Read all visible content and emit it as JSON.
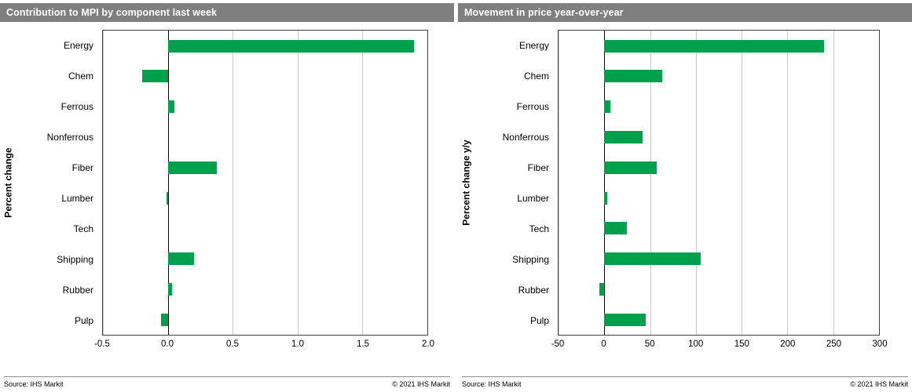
{
  "colors": {
    "bar": "#00a04c",
    "header_bg": "#7f7f7f",
    "grid": "#c9c9c9",
    "zero_line": "#000000"
  },
  "chart_data": [
    {
      "type": "bar",
      "orientation": "horizontal",
      "title": "Contribution to MPI by component last week",
      "ylabel": "Percent change",
      "categories": [
        "Energy",
        "Chem",
        "Ferrous",
        "Nonferrous",
        "Fiber",
        "Lumber",
        "Tech",
        "Shipping",
        "Rubber",
        "Pulp"
      ],
      "values": [
        1.9,
        -0.2,
        0.05,
        0,
        0.38,
        -0.01,
        0,
        0.2,
        0.03,
        -0.05
      ],
      "xlim": [
        -0.5,
        2.0
      ],
      "ticks": [
        {
          "value": -0.5,
          "label": "-0.5"
        },
        {
          "value": 0.0,
          "label": "0.0"
        },
        {
          "value": 0.5,
          "label": "0.5"
        },
        {
          "value": 1.0,
          "label": "1.0"
        },
        {
          "value": 1.5,
          "label": "1.5"
        },
        {
          "value": 2.0,
          "label": "2.0"
        }
      ],
      "grid": true,
      "legend": false,
      "source": "Source:  IHS Markit",
      "copyright": "© 2021   IHS Markit"
    },
    {
      "type": "bar",
      "orientation": "horizontal",
      "title": "Movement in price year-over-year",
      "ylabel": "Percent change y/y",
      "categories": [
        "Energy",
        "Chem",
        "Ferrous",
        "Nonferrous",
        "Fiber",
        "Lumber",
        "Tech",
        "Shipping",
        "Rubber",
        "Pulp"
      ],
      "values": [
        240,
        63,
        7,
        42,
        57,
        3,
        25,
        105,
        -5,
        45
      ],
      "xlim": [
        -50,
        300
      ],
      "ticks": [
        {
          "value": -50,
          "label": "-50"
        },
        {
          "value": 0,
          "label": "0"
        },
        {
          "value": 50,
          "label": "50"
        },
        {
          "value": 100,
          "label": "100"
        },
        {
          "value": 150,
          "label": "150"
        },
        {
          "value": 200,
          "label": "200"
        },
        {
          "value": 250,
          "label": "250"
        },
        {
          "value": 300,
          "label": "300"
        }
      ],
      "grid": true,
      "legend": false,
      "source": "Source:  IHS Markit",
      "copyright": "© 2021   IHS Markit"
    }
  ]
}
